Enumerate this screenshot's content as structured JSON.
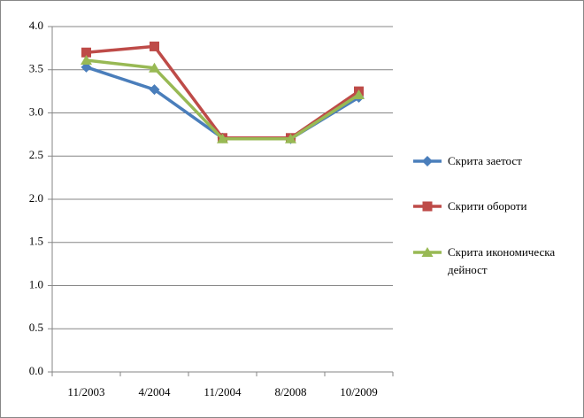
{
  "chart_data": {
    "type": "line",
    "categories": [
      "11/2003",
      "4/2004",
      "11/2004",
      "8/2008",
      "10/2009"
    ],
    "series": [
      {
        "name": "Скрита заетост",
        "color": "#4a7ebb",
        "marker": "diamond",
        "values": [
          3.53,
          3.27,
          2.71,
          2.7,
          3.18
        ]
      },
      {
        "name": "Скрити обороти",
        "color": "#be4b48",
        "marker": "square",
        "values": [
          3.7,
          3.77,
          2.71,
          2.71,
          3.25
        ]
      },
      {
        "name": "Скрита икономическа дейност",
        "color": "#98b954",
        "marker": "triangle",
        "values": [
          3.61,
          3.52,
          2.7,
          2.7,
          3.21
        ]
      }
    ],
    "ylim": [
      0,
      4
    ],
    "yticks": [
      {
        "value": 0,
        "label": "0.0"
      },
      {
        "value": 0.5,
        "label": "0.5"
      },
      {
        "value": 1,
        "label": "1.0"
      },
      {
        "value": 1.5,
        "label": "1.5"
      },
      {
        "value": 2,
        "label": "2.0"
      },
      {
        "value": 2.5,
        "label": "2.5"
      },
      {
        "value": 3,
        "label": "3.0"
      },
      {
        "value": 3.5,
        "label": "3.5"
      },
      {
        "value": 4,
        "label": "4.0"
      }
    ],
    "grid": true,
    "legend": "right"
  }
}
